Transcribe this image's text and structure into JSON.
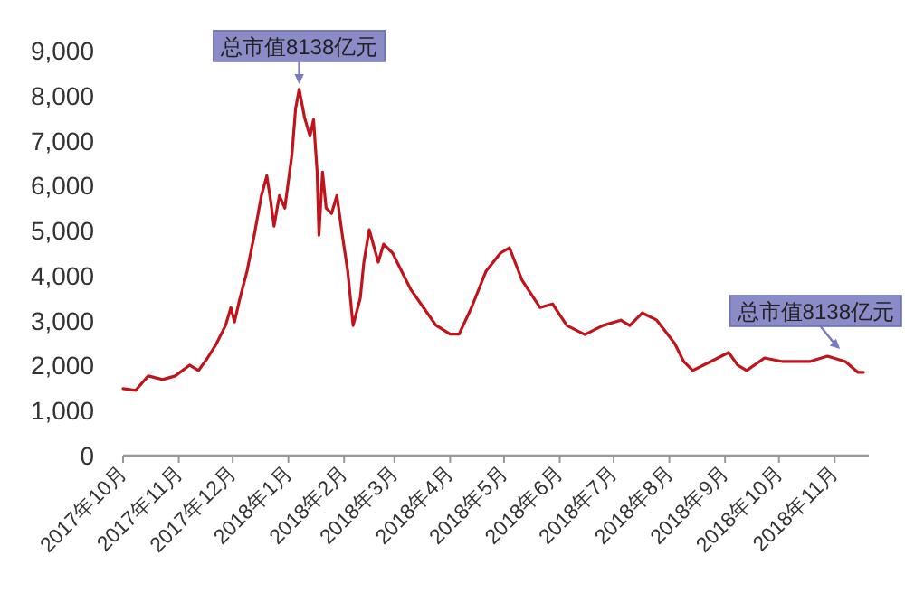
{
  "chart_data": {
    "type": "line",
    "x": [
      "2017-10-01",
      "2017-10-08",
      "2017-10-15",
      "2017-10-23",
      "2017-10-30",
      "2017-11-07",
      "2017-11-12",
      "2017-11-17",
      "2017-11-22",
      "2017-11-27",
      "2017-11-30",
      "2017-12-02",
      "2017-12-05",
      "2017-12-09",
      "2017-12-13",
      "2017-12-17",
      "2017-12-20",
      "2017-12-22",
      "2017-12-24",
      "2017-12-27",
      "2017-12-30",
      "2018-01-01",
      "2018-01-03",
      "2018-01-05",
      "2018-01-07",
      "2018-01-10",
      "2018-01-13",
      "2018-01-15",
      "2018-01-17",
      "2018-01-18",
      "2018-01-20",
      "2018-01-22",
      "2018-01-25",
      "2018-01-28",
      "2018-01-31",
      "2018-02-03",
      "2018-02-06",
      "2018-02-10",
      "2018-02-12",
      "2018-02-15",
      "2018-02-20",
      "2018-02-23",
      "2018-02-28",
      "2018-03-04",
      "2018-03-10",
      "2018-03-17",
      "2018-03-24",
      "2018-04-01",
      "2018-04-06",
      "2018-04-13",
      "2018-04-21",
      "2018-04-29",
      "2018-05-04",
      "2018-05-11",
      "2018-05-21",
      "2018-05-28",
      "2018-06-05",
      "2018-06-15",
      "2018-06-25",
      "2018-07-05",
      "2018-07-10",
      "2018-07-17",
      "2018-07-25",
      "2018-08-04",
      "2018-08-09",
      "2018-08-14",
      "2018-08-24",
      "2018-09-03",
      "2018-09-08",
      "2018-09-13",
      "2018-09-23",
      "2018-10-03",
      "2018-10-18",
      "2018-10-28",
      "2018-11-07",
      "2018-11-14",
      "2018-11-17"
    ],
    "series": [
      {
        "color": "#c0141c",
        "values": [
          1490,
          1450,
          1770,
          1690,
          1770,
          2010,
          1890,
          2170,
          2490,
          2890,
          3290,
          2970,
          3490,
          4100,
          4900,
          5780,
          6220,
          5700,
          5100,
          5780,
          5500,
          6100,
          6700,
          7710,
          8138,
          7510,
          7100,
          7470,
          6300,
          4900,
          6300,
          5500,
          5380,
          5780,
          4900,
          4100,
          2890,
          3500,
          4300,
          5020,
          4300,
          4700,
          4500,
          4180,
          3700,
          3300,
          2900,
          2700,
          2700,
          3300,
          4100,
          4500,
          4620,
          3900,
          3290,
          3370,
          2890,
          2690,
          2890,
          3010,
          2890,
          3170,
          3010,
          2490,
          2090,
          1890,
          2090,
          2290,
          2010,
          1890,
          2170,
          2090,
          2090,
          2210,
          2090,
          1850,
          1850
        ]
      }
    ],
    "xlim": [
      "2017-10-01",
      "2018-11-20"
    ],
    "xticks": [
      {
        "value": "2017-10-01",
        "label": "2017年10月"
      },
      {
        "value": "2017-11-01",
        "label": "2017年11月"
      },
      {
        "value": "2017-12-01",
        "label": "2017年12月"
      },
      {
        "value": "2018-01-01",
        "label": "2018年1月"
      },
      {
        "value": "2018-02-01",
        "label": "2018年2月"
      },
      {
        "value": "2018-03-01",
        "label": "2018年3月"
      },
      {
        "value": "2018-04-01",
        "label": "2018年4月"
      },
      {
        "value": "2018-05-01",
        "label": "2018年5月"
      },
      {
        "value": "2018-06-01",
        "label": "2018年6月"
      },
      {
        "value": "2018-07-01",
        "label": "2018年7月"
      },
      {
        "value": "2018-08-01",
        "label": "2018年8月"
      },
      {
        "value": "2018-09-01",
        "label": "2018年9月"
      },
      {
        "value": "2018-10-01",
        "label": "2018年10月"
      },
      {
        "value": "2018-11-01",
        "label": "2018年11月"
      }
    ],
    "ylim": [
      0,
      9000
    ],
    "yticks": [
      0,
      {
        "value": 1000,
        "label": "1,000"
      },
      {
        "value": 2000,
        "label": "2,000"
      },
      {
        "value": 3000,
        "label": "3,000"
      },
      {
        "value": 4000,
        "label": "4,000"
      },
      {
        "value": 5000,
        "label": "5,000"
      },
      {
        "value": 6000,
        "label": "6,000"
      },
      {
        "value": 7000,
        "label": "7,000"
      },
      {
        "value": 8000,
        "label": "8,000"
      },
      {
        "value": 9000,
        "label": "9,000"
      }
    ],
    "annotations": [
      {
        "text": "总市值8138亿元",
        "x": "2018-01-07",
        "y": 8138
      },
      {
        "text": "总市值8138亿元",
        "x": "2018-11-04",
        "y": 2250
      }
    ]
  }
}
